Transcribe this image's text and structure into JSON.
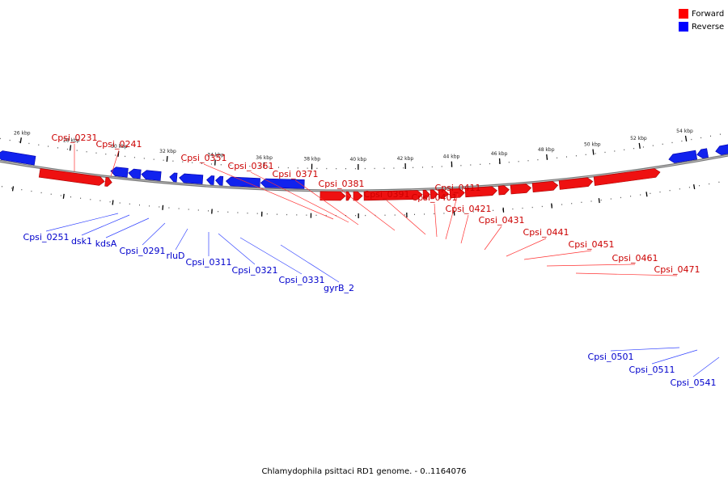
{
  "legend": {
    "items": [
      {
        "label": "Forward",
        "color": "#ff0000"
      },
      {
        "label": "Reverse",
        "color": "#0000ff"
      }
    ]
  },
  "caption": "Chlamydophila psittaci RD1 genome. - 0..1164076",
  "colors": {
    "forward": "#ee1111",
    "reverse": "#1122ee",
    "forward_label": "#cc0000",
    "reverse_label": "#0000cc",
    "backbone": "#777777"
  },
  "scale_labels": [
    "26 kbp",
    "28 kbp",
    "30 kbp",
    "32 kbp",
    "34 kbp",
    "36 kbp",
    "38 kbp",
    "40 kbp",
    "42 kbp",
    "44 kbp",
    "46 kbp",
    "48 kbp",
    "50 kbp",
    "52 kbp",
    "54 kbp"
  ],
  "forward_gene_labels": [
    "Cpsi_0231",
    "Cpsi_0241",
    "Cpsi_0351",
    "Cpsi_0361",
    "Cpsi_0371",
    "Cpsi_0381",
    "Cpsi_0391",
    "Cpsi_0401",
    "Cpsi_0411",
    "Cpsi_0421",
    "Cpsi_0431",
    "Cpsi_0441",
    "Cpsi_0451",
    "Cpsi_0461",
    "Cpsi_0471"
  ],
  "reverse_gene_labels": [
    "Cpsi_0251",
    "dsk1",
    "kdsA",
    "Cpsi_0291",
    "rluD",
    "Cpsi_0311",
    "Cpsi_0321",
    "Cpsi_0331",
    "gyrB_2",
    "Cpsi_0501",
    "Cpsi_0511",
    "Cpsi_0541"
  ]
}
